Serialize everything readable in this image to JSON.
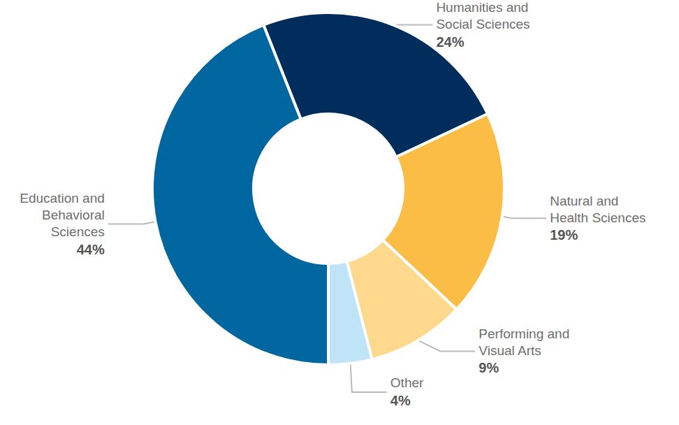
{
  "chart_data": {
    "type": "pie",
    "categories": [
      "Other",
      "Performing and\nVisual Arts",
      "Natural and\nHealth Sciences",
      "Humanities and\nSocial Sciences",
      "Education and\nBehavioral\nSciences"
    ],
    "values": [
      4,
      9,
      19,
      24,
      44
    ],
    "value_labels": [
      "4%",
      "9%",
      "19%",
      "24%",
      "44%"
    ],
    "colors": [
      "#bfe4f8",
      "#fed88c",
      "#fbbd45",
      "#002d5c",
      "#0066a0"
    ],
    "data_labels": true
  }
}
